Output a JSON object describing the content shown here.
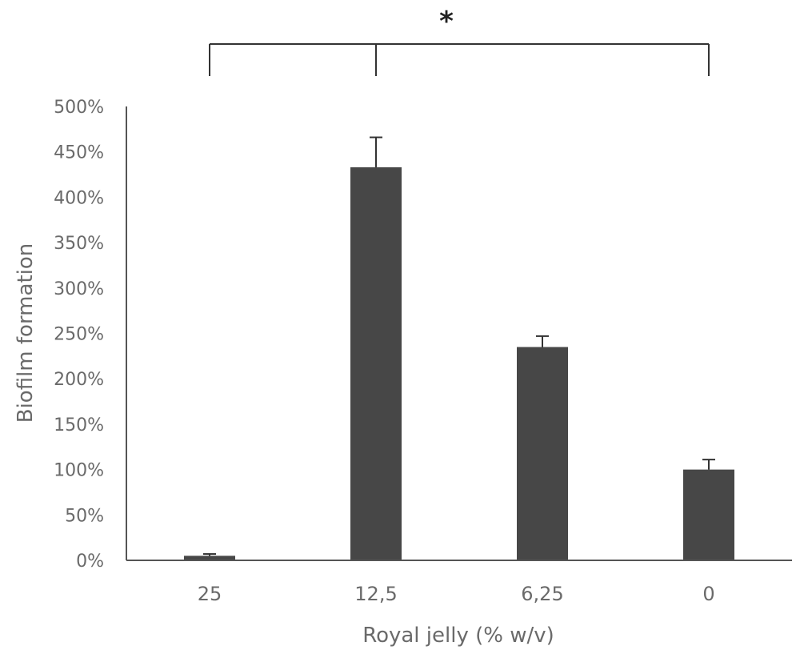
{
  "chart_data": {
    "type": "bar",
    "xlabel": "Royal jelly (% w/v)",
    "ylabel": "Biofilm formation",
    "categories": [
      "25",
      "12,5",
      "6,25",
      "0"
    ],
    "values": [
      5,
      433,
      235,
      100
    ],
    "error_bars": [
      2,
      33,
      12,
      11
    ],
    "ylim": [
      0,
      500
    ],
    "y_ticks": [
      0,
      50,
      100,
      150,
      200,
      250,
      300,
      350,
      400,
      450,
      500
    ],
    "y_tick_labels": [
      "0%",
      "50%",
      "100%",
      "150%",
      "200%",
      "250%",
      "300%",
      "350%",
      "400%",
      "450%",
      "500%"
    ],
    "significance": {
      "label": "*",
      "groups": [
        "25",
        "12,5",
        "0"
      ]
    },
    "grid": false,
    "legend": "none",
    "bar_color": "#474747"
  }
}
